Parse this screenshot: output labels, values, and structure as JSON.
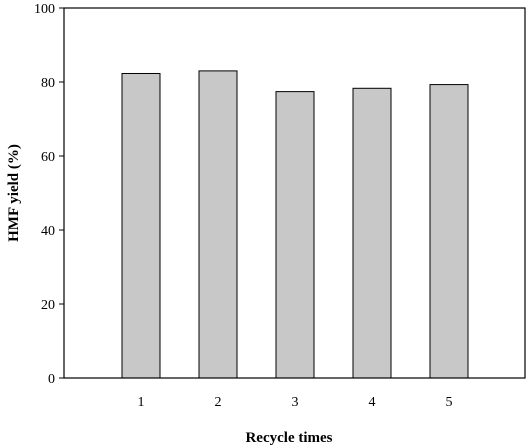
{
  "chart_data": {
    "type": "bar",
    "categories": [
      "1",
      "2",
      "3",
      "4",
      "5"
    ],
    "values": [
      82.3,
      83.0,
      77.4,
      78.3,
      79.3
    ],
    "xlabel": "Recycle times",
    "ylabel": "HMF yield (%)",
    "ylim": [
      0,
      100
    ],
    "yticks": [
      0,
      20,
      40,
      60,
      80,
      100
    ],
    "grid": false,
    "bar_color": "#c8c8c8"
  }
}
